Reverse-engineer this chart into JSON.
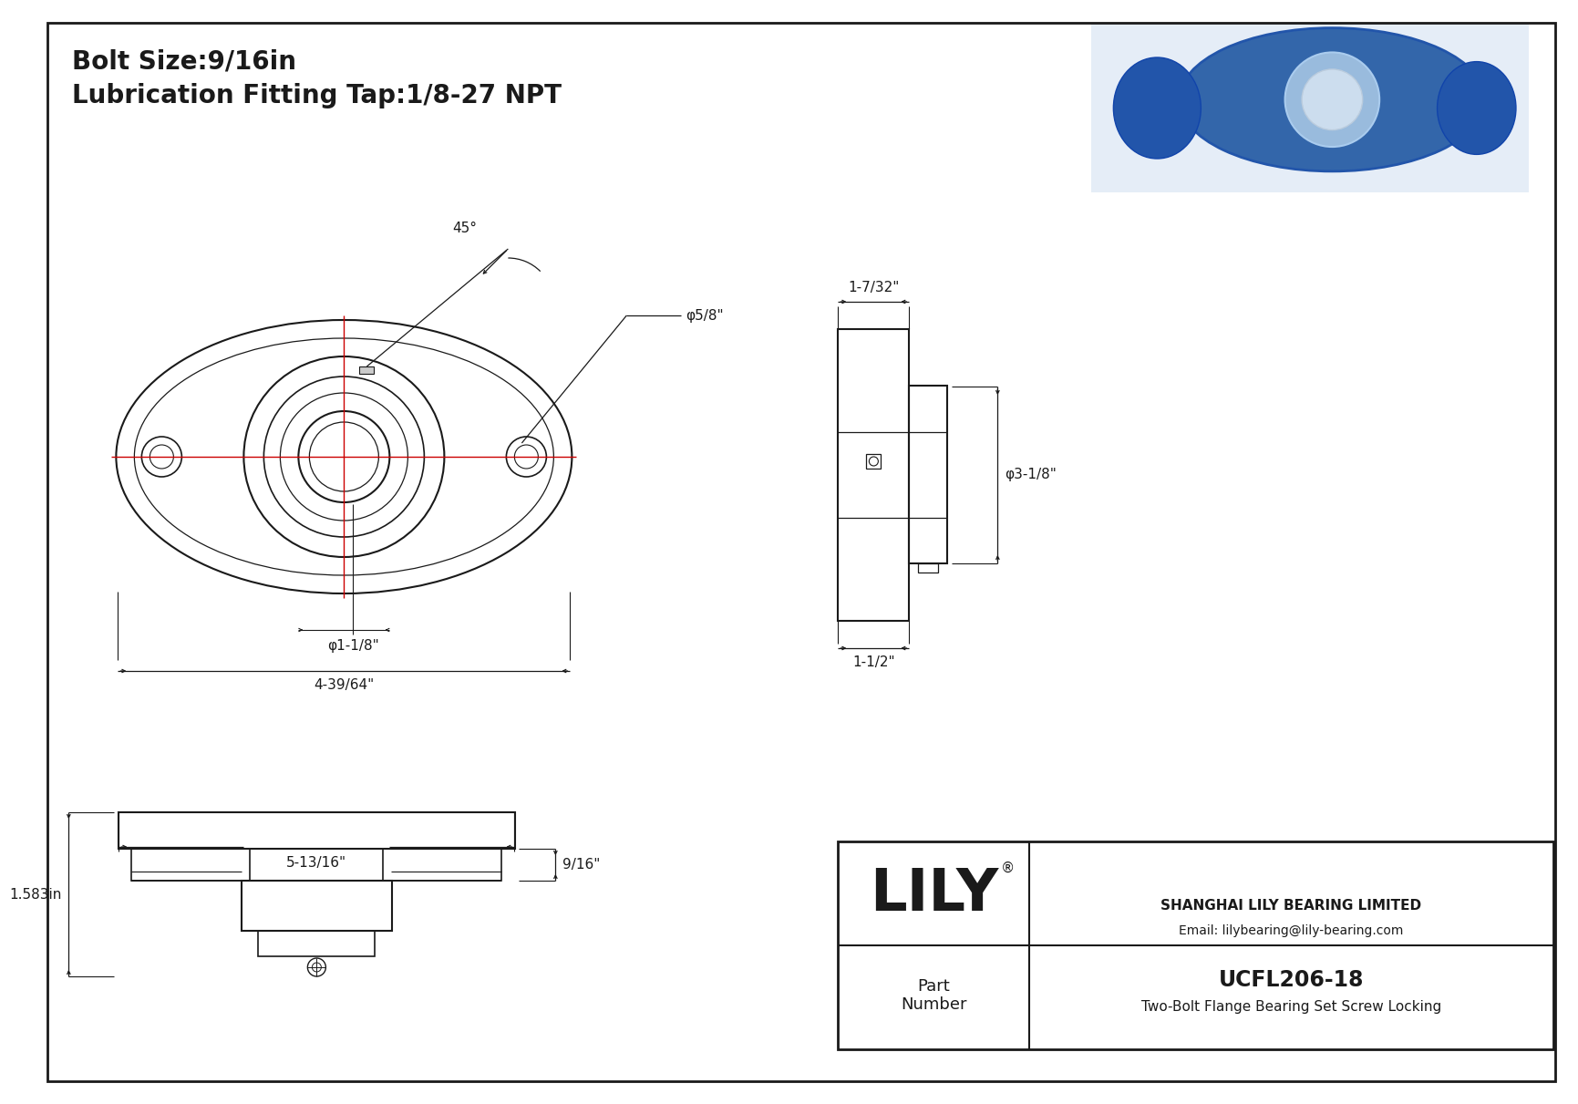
{
  "bg_color": "#ffffff",
  "line_color": "#1a1a1a",
  "red_color": "#cc0000",
  "title_line1": "Bolt Size:9/16in",
  "title_line2": "Lubrication Fitting Tap:1/8-27 NPT",
  "company": "SHANGHAI LILY BEARING LIMITED",
  "email": "Email: lilybearing@lily-bearing.com",
  "part_label": "Part\nNumber",
  "part_number": "UCFL206-18",
  "part_desc": "Two-Bolt Flange Bearing Set Screw Locking",
  "lily_text": "LILY",
  "dim_45": "45°",
  "dim_phi58": "φ5/8\"",
  "dim_phi118": "φ1-1/8\"",
  "dim_width": "4-39/64\"",
  "dim_side_top": "1-1/2\"",
  "dim_side_dia": "φ3-1/8\"",
  "dim_side_bot": "1-7/32\"",
  "dim_bot_916": "9/16\"",
  "dim_bot_height": "1.583in",
  "dim_bot_width": "5-13/16\""
}
